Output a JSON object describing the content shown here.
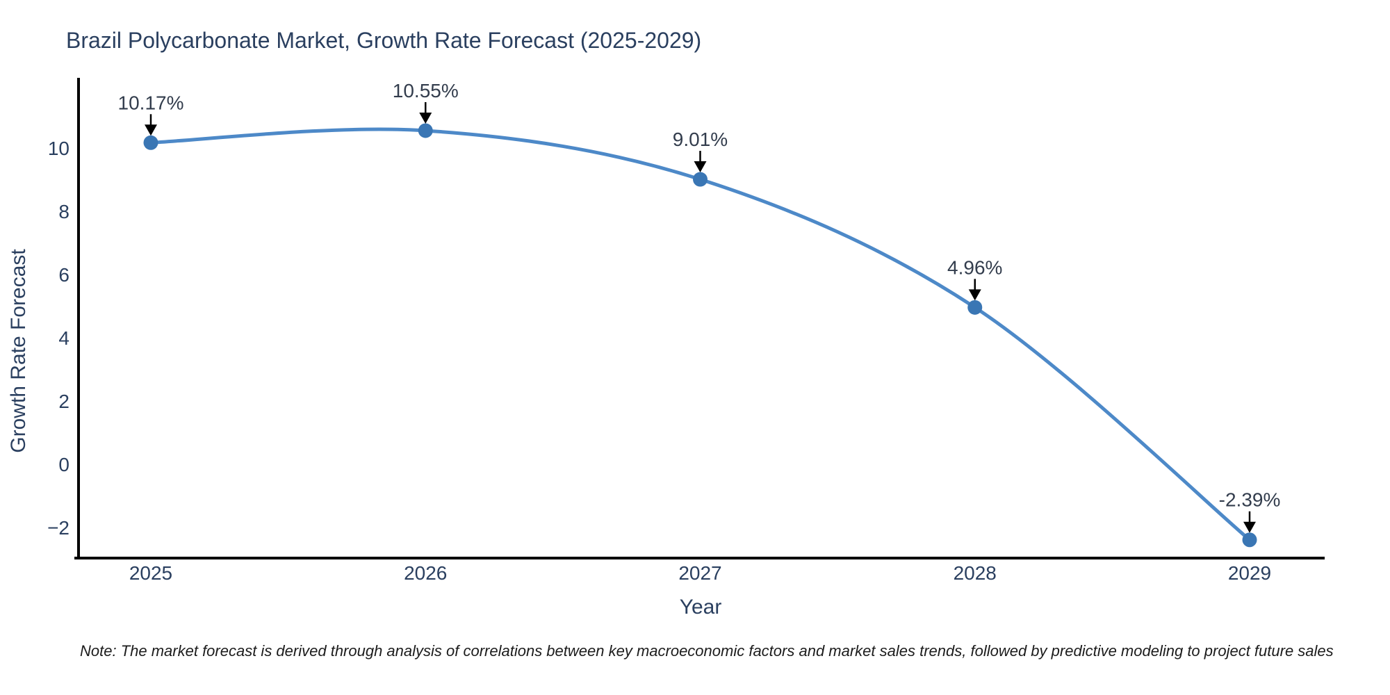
{
  "note": "Note: The market forecast is derived through analysis of correlations between key macroeconomic factors and market sales trends, followed by predictive modeling to project future sales",
  "chart_data": {
    "type": "line",
    "title": "Brazil Polycarbonate Market, Growth Rate Forecast (2025-2029)",
    "xlabel": "Year",
    "ylabel": "Growth Rate Forecast",
    "categories": [
      2025,
      2026,
      2027,
      2028,
      2029
    ],
    "series": [
      {
        "name": "Growth Rate Forecast",
        "values": [
          10.17,
          10.55,
          9.01,
          4.96,
          -2.39
        ]
      }
    ],
    "point_labels": [
      "10.17%",
      "10.55%",
      "9.01%",
      "4.96%",
      "-2.39%"
    ],
    "yticks": [
      10,
      8,
      6,
      4,
      2,
      0,
      -2
    ],
    "ylim": [
      -3.1,
      12.2
    ],
    "grid": false,
    "legend": "none",
    "line_shape": "spline",
    "line_color": "#4d89c8",
    "marker_color": "#3a76b4",
    "axis_color": "#000000",
    "text_color": "#2a3f5f",
    "annotation_text_color": "#333d4d",
    "annotation_arrow_color": "#000000"
  }
}
